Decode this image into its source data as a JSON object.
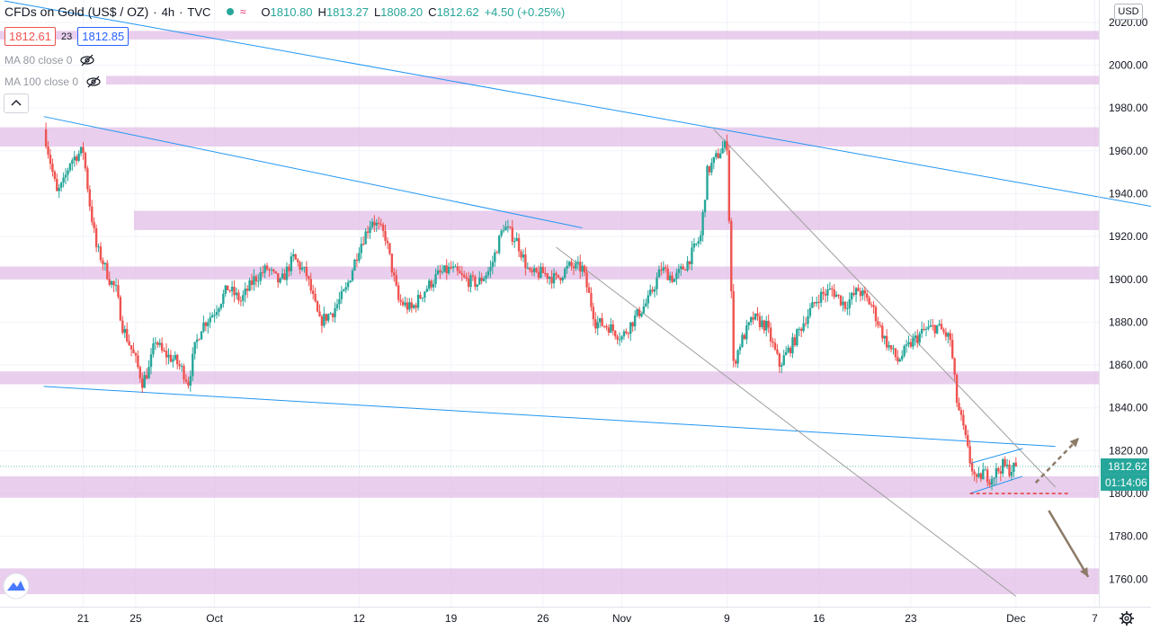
{
  "header": {
    "symbol": "CFDs on Gold (US$ / OZ)",
    "interval": "4h",
    "source": "TVC",
    "open": "1810.80",
    "high": "1813.27",
    "low": "1808.20",
    "close": "1812.62",
    "change": "+4.50 (+0.25%)"
  },
  "price_boxes": {
    "bid": "1812.61",
    "spread": "23",
    "ask": "1812.85"
  },
  "indicators": {
    "ma80": "MA 80 close 0",
    "ma100": "MA 100 close 0"
  },
  "price_axis": {
    "currency": "USD",
    "last_price": "1812.62",
    "countdown": "01:14:06",
    "ticks": [
      "2020.00",
      "2000.00",
      "1980.00",
      "1960.00",
      "1940.00",
      "1920.00",
      "1900.00",
      "1880.00",
      "1860.00",
      "1840.00",
      "1820.00",
      "1800.00",
      "1780.00",
      "1760.00"
    ]
  },
  "time_axis": {
    "ticks": [
      {
        "label": "21",
        "day": -9
      },
      {
        "label": "25",
        "day": -5
      },
      {
        "label": "Oct",
        "day": 1
      },
      {
        "label": "12",
        "day": 12
      },
      {
        "label": "19",
        "day": 19
      },
      {
        "label": "26",
        "day": 26
      },
      {
        "label": "Nov",
        "day": 32
      },
      {
        "label": "9",
        "day": 40
      },
      {
        "label": "16",
        "day": 47
      },
      {
        "label": "23",
        "day": 54
      },
      {
        "label": "Dec",
        "day": 62
      },
      {
        "label": "7",
        "day": 68
      }
    ]
  },
  "colors": {
    "up": "#26a69a",
    "down": "#ef5350",
    "zone": "#e1bee7",
    "trendline": "#2196f3",
    "channel": "#9e9e9e",
    "projection": "#8d7b68",
    "support": "#e53935"
  },
  "chart_data": {
    "type": "candlestick",
    "x_unit": "days relative to 2020-10-01",
    "ylim": [
      1750,
      2025
    ],
    "last_price": 1812.62,
    "path": [
      [
        -12,
        1970
      ],
      [
        -11.5,
        1955
      ],
      [
        -11,
        1940
      ],
      [
        -10.5,
        1945
      ],
      [
        -10,
        1955
      ],
      [
        -9.5,
        1958
      ],
      [
        -9,
        1960
      ],
      [
        -8.5,
        1935
      ],
      [
        -8,
        1915
      ],
      [
        -7.5,
        1908
      ],
      [
        -7,
        1900
      ],
      [
        -6.5,
        1895
      ],
      [
        -6,
        1878
      ],
      [
        -5.5,
        1870
      ],
      [
        -5,
        1862
      ],
      [
        -4.5,
        1852
      ],
      [
        -4,
        1858
      ],
      [
        -3.5,
        1872
      ],
      [
        -3,
        1866
      ],
      [
        -2.5,
        1864
      ],
      [
        -2,
        1862
      ],
      [
        -1.5,
        1858
      ],
      [
        -1,
        1852
      ],
      [
        -0.5,
        1868
      ],
      [
        0,
        1878
      ],
      [
        1,
        1885
      ],
      [
        2,
        1896
      ],
      [
        3,
        1890
      ],
      [
        4,
        1900
      ],
      [
        5,
        1905
      ],
      [
        6,
        1898
      ],
      [
        7,
        1910
      ],
      [
        8,
        1902
      ],
      [
        9,
        1880
      ],
      [
        10,
        1885
      ],
      [
        11,
        1895
      ],
      [
        12,
        1915
      ],
      [
        13,
        1928
      ],
      [
        14,
        1920
      ],
      [
        15,
        1890
      ],
      [
        16,
        1886
      ],
      [
        17,
        1895
      ],
      [
        18,
        1902
      ],
      [
        19,
        1905
      ],
      [
        20,
        1900
      ],
      [
        21,
        1898
      ],
      [
        22,
        1905
      ],
      [
        23,
        1925
      ],
      [
        24,
        1918
      ],
      [
        25,
        1902
      ],
      [
        26,
        1903
      ],
      [
        27,
        1900
      ],
      [
        28,
        1906
      ],
      [
        29,
        1905
      ],
      [
        30,
        1880
      ],
      [
        31,
        1878
      ],
      [
        32,
        1873
      ],
      [
        33,
        1882
      ],
      [
        34,
        1890
      ],
      [
        35,
        1905
      ],
      [
        36,
        1900
      ],
      [
        37,
        1908
      ],
      [
        38,
        1920
      ],
      [
        38.5,
        1950
      ],
      [
        39,
        1955
      ],
      [
        39.5,
        1960
      ],
      [
        40,
        1963
      ],
      [
        40.5,
        1860
      ],
      [
        41,
        1870
      ],
      [
        42,
        1882
      ],
      [
        43,
        1878
      ],
      [
        44,
        1860
      ],
      [
        45,
        1870
      ],
      [
        46,
        1882
      ],
      [
        47,
        1892
      ],
      [
        48,
        1895
      ],
      [
        49,
        1888
      ],
      [
        50,
        1895
      ],
      [
        51,
        1888
      ],
      [
        52,
        1872
      ],
      [
        53,
        1862
      ],
      [
        54,
        1870
      ],
      [
        55,
        1876
      ],
      [
        56,
        1878
      ],
      [
        57,
        1872
      ],
      [
        57.5,
        1843
      ],
      [
        58,
        1830
      ],
      [
        58.5,
        1815
      ],
      [
        59,
        1805
      ],
      [
        59.5,
        1810
      ],
      [
        60,
        1807
      ],
      [
        61,
        1813
      ],
      [
        61.5,
        1811
      ],
      [
        62,
        1812.62
      ]
    ],
    "zones": [
      [
        2012,
        2016
      ],
      [
        1991,
        1995
      ],
      [
        1962,
        1971
      ],
      [
        1923,
        1932
      ],
      [
        1900,
        1906
      ],
      [
        1851,
        1857
      ],
      [
        1798,
        1808
      ],
      [
        1753,
        1765
      ]
    ],
    "trendlines": [
      {
        "style": "blue",
        "from": [
          -12,
          1976
        ],
        "to": [
          29,
          1924
        ]
      },
      {
        "style": "blue",
        "from": [
          -15,
          2030
        ],
        "to": [
          76,
          1930
        ]
      },
      {
        "style": "blue",
        "from": [
          -12,
          1850
        ],
        "to": [
          65,
          1822
        ]
      },
      {
        "style": "gray",
        "from": [
          27,
          1915
        ],
        "to": [
          62,
          1752
        ]
      },
      {
        "style": "gray",
        "from": [
          39,
          1970
        ],
        "to": [
          65,
          1803
        ]
      },
      {
        "style": "blue",
        "from": [
          58.5,
          1814
        ],
        "to": [
          62.5,
          1821
        ]
      },
      {
        "style": "blue",
        "from": [
          58.5,
          1800
        ],
        "to": [
          62.5,
          1808
        ]
      }
    ],
    "support_level": {
      "price": 1800,
      "from": 58.5,
      "to": 66
    },
    "arrows": [
      {
        "style": "dashed",
        "from": [
          63.5,
          1805
        ],
        "to": [
          66.8,
          1826
        ]
      },
      {
        "style": "solid",
        "from": [
          64.5,
          1792
        ],
        "to": [
          67.5,
          1761
        ]
      }
    ]
  }
}
